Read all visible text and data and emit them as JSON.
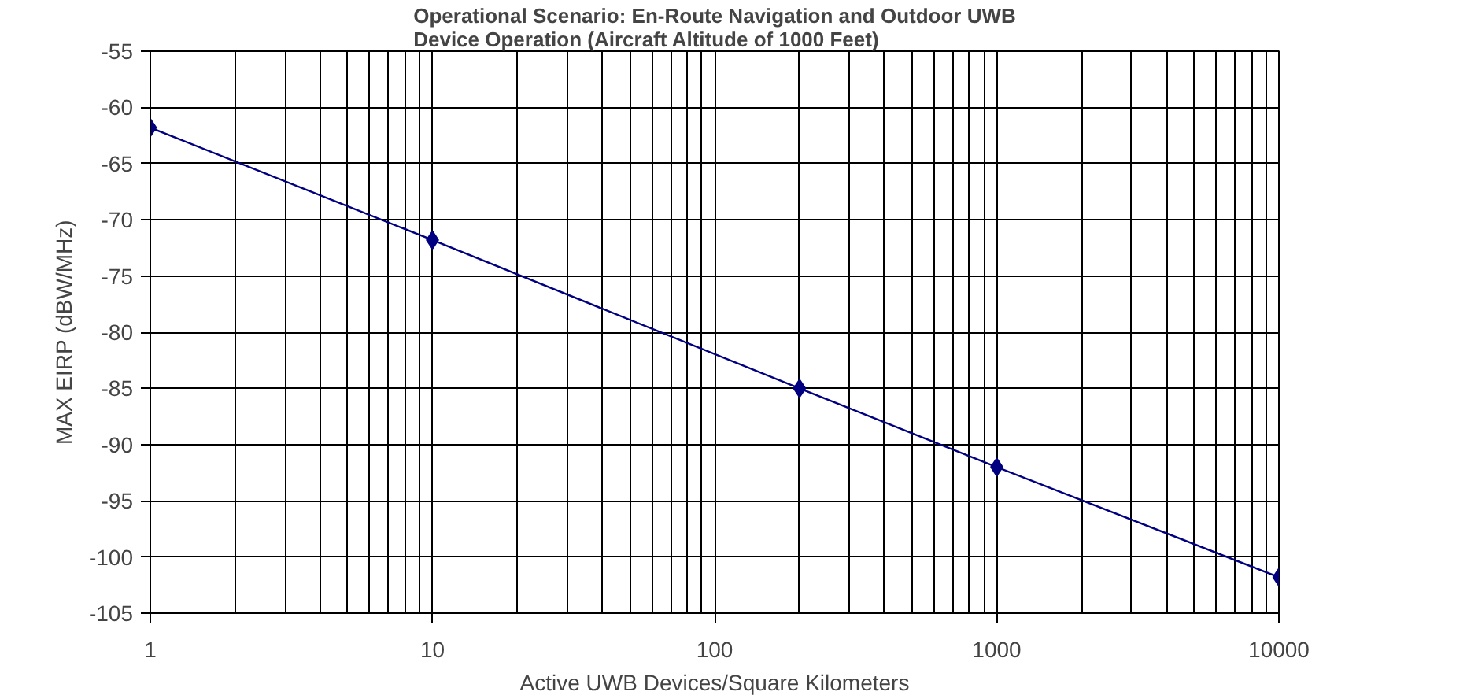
{
  "chart_data": {
    "type": "line",
    "title": "Operational Scenario: En-Route Navigation and Outdoor UWB\nDevice Operation (Aircraft Altitude of 1000 Feet)",
    "xlabel": "Active UWB Devices/Square Kilometers",
    "ylabel": "MAX EIRP (dBW/MHz)",
    "x": [
      1,
      10,
      200,
      1000,
      10000
    ],
    "series": [
      {
        "color": "#000080",
        "values": [
          -61.8,
          -71.8,
          -85,
          -92,
          -101.8
        ]
      }
    ],
    "log": "x",
    "xlim": [
      1,
      10000
    ],
    "xticks": [
      1,
      10,
      100,
      1000,
      10000
    ],
    "ylim": [
      -105,
      -55
    ],
    "yticks": [
      -105,
      -100,
      -95,
      -90,
      -85,
      -80,
      -75,
      -70,
      -65,
      -60,
      -55
    ],
    "grid": true,
    "marker": "diamond",
    "line_style": "solid"
  }
}
